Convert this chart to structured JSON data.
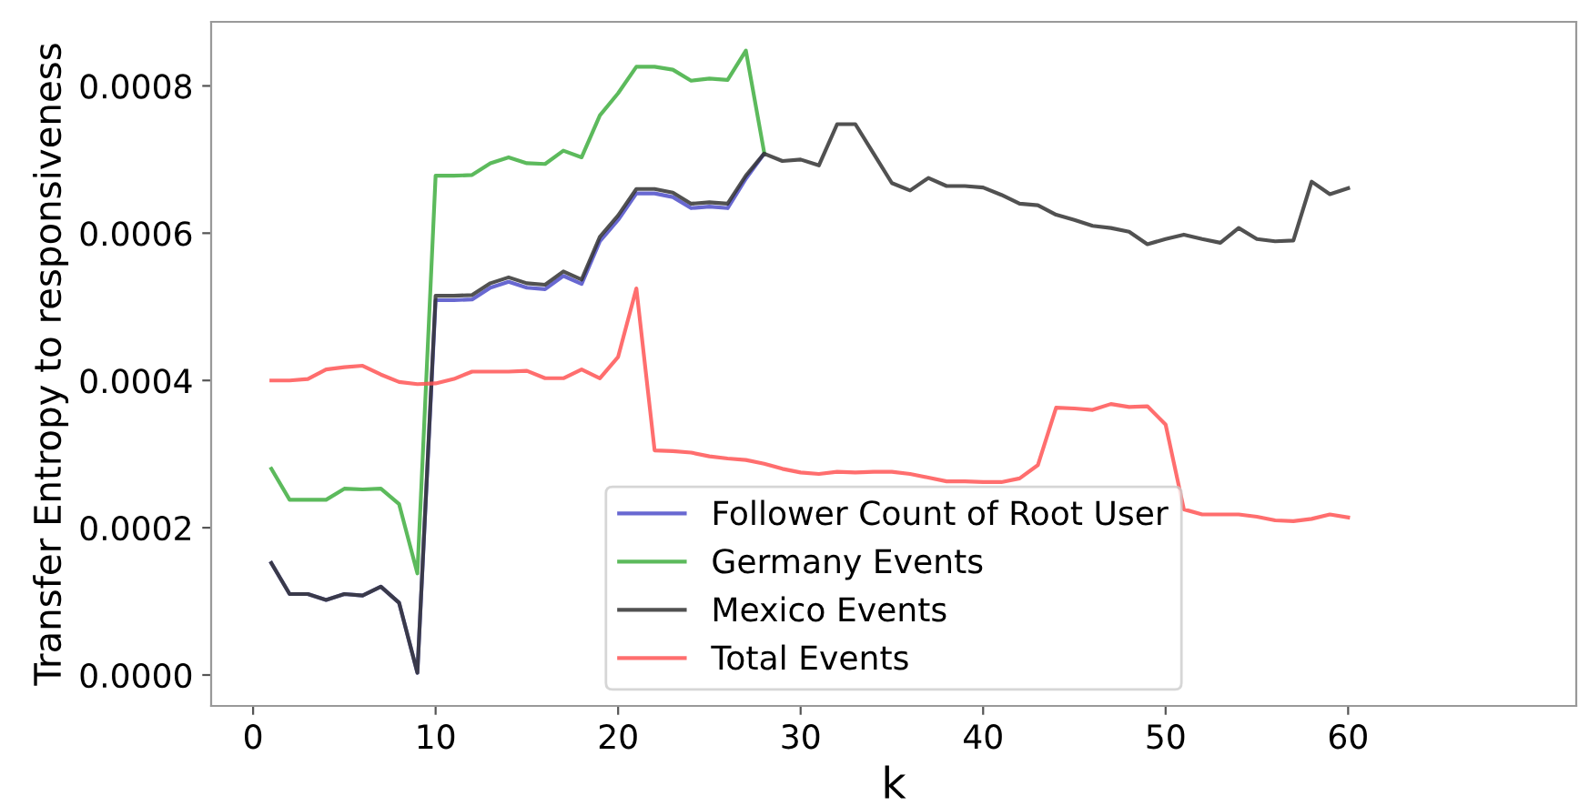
{
  "chart_data": {
    "type": "line",
    "xlabel": "k",
    "ylabel": "Transfer Entropy to responsiveness",
    "xlim": [
      -2.3,
      72.5
    ],
    "xticks": [
      0,
      10,
      20,
      30,
      40,
      50,
      60
    ],
    "ylim": [
      -4.2e-05,
      0.000887
    ],
    "yticks": [
      {
        "value": 0,
        "label": "0.0000"
      },
      {
        "value": 0.0002,
        "label": "0.0002"
      },
      {
        "value": 0.0004,
        "label": "0.0004"
      },
      {
        "value": 0.0006,
        "label": "0.0006"
      },
      {
        "value": 0.0008,
        "label": "0.0008"
      }
    ],
    "grid": false,
    "legend": "bottom",
    "marker": "none",
    "line_style": "solid",
    "series": [
      {
        "name": "Follower Count of Root User",
        "color": "#4d4dc9",
        "x": [
          1,
          2,
          3,
          4,
          5,
          6,
          7,
          8,
          9,
          10,
          11,
          12,
          13,
          14,
          15,
          16,
          17,
          18,
          19,
          20,
          21,
          22,
          23,
          24,
          25,
          26,
          27,
          28
        ],
        "values": [
          0.000152,
          0.00011,
          0.00011,
          0.000102,
          0.00011,
          0.000108,
          0.00012,
          9.8e-05,
          3e-06,
          0.000509,
          0.000509,
          0.00051,
          0.000526,
          0.000534,
          0.000526,
          0.000524,
          0.000542,
          0.000531,
          0.000589,
          0.000618,
          0.000654,
          0.000654,
          0.000649,
          0.000634,
          0.000636,
          0.000634,
          0.000674,
          0.000708
        ]
      },
      {
        "name": "Germany Events",
        "color": "#3fae3f",
        "x": [
          1,
          2,
          3,
          4,
          5,
          6,
          7,
          8,
          9,
          10,
          11,
          12,
          13,
          14,
          15,
          16,
          17,
          18,
          19,
          20,
          21,
          22,
          23,
          24,
          25,
          26,
          27,
          28
        ],
        "values": [
          0.00028,
          0.000238,
          0.000238,
          0.000238,
          0.000253,
          0.000252,
          0.000253,
          0.000232,
          0.000138,
          0.000678,
          0.000678,
          0.000679,
          0.000695,
          0.000703,
          0.000695,
          0.000694,
          0.000712,
          0.000703,
          0.00076,
          0.00079,
          0.000826,
          0.000826,
          0.000822,
          0.000807,
          0.00081,
          0.000808,
          0.000848,
          0.00071
        ]
      },
      {
        "name": "Mexico Events",
        "color": "#333333",
        "x": [
          1,
          2,
          3,
          4,
          5,
          6,
          7,
          8,
          9,
          10,
          11,
          12,
          13,
          14,
          15,
          16,
          17,
          18,
          19,
          20,
          21,
          22,
          23,
          24,
          25,
          26,
          27,
          28,
          29,
          30,
          31,
          32,
          33,
          34,
          35,
          36,
          37,
          38,
          39,
          40,
          41,
          42,
          43,
          44,
          45,
          46,
          47,
          48,
          49,
          50,
          51,
          52,
          53,
          54,
          55,
          56,
          57,
          58,
          59,
          60
        ],
        "values": [
          0.000152,
          0.00011,
          0.00011,
          0.000102,
          0.00011,
          0.000108,
          0.00012,
          9.8e-05,
          3e-06,
          0.000515,
          0.000515,
          0.000516,
          0.000532,
          0.00054,
          0.000532,
          0.00053,
          0.000548,
          0.000537,
          0.000595,
          0.000624,
          0.00066,
          0.00066,
          0.000655,
          0.00064,
          0.000642,
          0.00064,
          0.000678,
          0.000708,
          0.000698,
          0.0007,
          0.000692,
          0.000748,
          0.000748,
          0.000708,
          0.000668,
          0.000658,
          0.000675,
          0.000664,
          0.000664,
          0.000662,
          0.000652,
          0.00064,
          0.000638,
          0.000625,
          0.000618,
          0.00061,
          0.000607,
          0.000602,
          0.000585,
          0.000592,
          0.000598,
          0.000592,
          0.000587,
          0.000607,
          0.000592,
          0.000589,
          0.00059,
          0.00067,
          0.000653,
          0.000661
        ]
      },
      {
        "name": "Total Events",
        "color": "#ff5555",
        "x": [
          1,
          2,
          3,
          4,
          5,
          6,
          7,
          8,
          9,
          10,
          11,
          12,
          13,
          14,
          15,
          16,
          17,
          18,
          19,
          20,
          21,
          22,
          23,
          24,
          25,
          26,
          27,
          28,
          29,
          30,
          31,
          32,
          33,
          34,
          35,
          36,
          37,
          38,
          39,
          40,
          41,
          42,
          43,
          44,
          45,
          46,
          47,
          48,
          49,
          50,
          51,
          52,
          53,
          54,
          55,
          56,
          57,
          58,
          59,
          60
        ],
        "values": [
          0.0004,
          0.0004,
          0.000402,
          0.000415,
          0.000418,
          0.00042,
          0.000408,
          0.000398,
          0.000395,
          0.000396,
          0.000402,
          0.000412,
          0.000412,
          0.000412,
          0.000413,
          0.000403,
          0.000403,
          0.000415,
          0.000403,
          0.000432,
          0.000525,
          0.000305,
          0.000304,
          0.000302,
          0.000297,
          0.000294,
          0.000292,
          0.000287,
          0.00028,
          0.000275,
          0.000273,
          0.000276,
          0.000275,
          0.000276,
          0.000276,
          0.000273,
          0.000268,
          0.000263,
          0.000263,
          0.000262,
          0.000262,
          0.000267,
          0.000285,
          0.000363,
          0.000362,
          0.00036,
          0.000368,
          0.000364,
          0.000365,
          0.00034,
          0.000225,
          0.000218,
          0.000218,
          0.000218,
          0.000215,
          0.00021,
          0.000209,
          0.000212,
          0.000218,
          0.000214
        ]
      }
    ]
  }
}
